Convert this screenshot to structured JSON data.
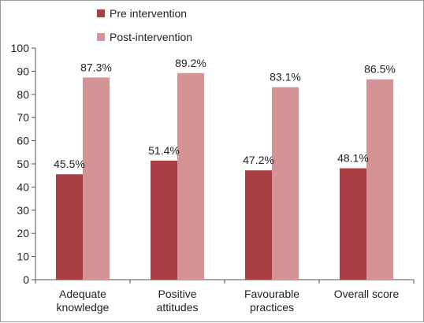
{
  "chart_data": {
    "type": "bar",
    "categories": [
      [
        "Adequate",
        "knowledge"
      ],
      [
        "Positive",
        "attitudes"
      ],
      [
        "Favourable",
        "practices"
      ],
      [
        "Overall score"
      ]
    ],
    "series": [
      {
        "name": "Pre intervention",
        "values": [
          45.5,
          51.4,
          47.2,
          48.1
        ],
        "labels": [
          "45.5%",
          "51.4%",
          "47.2%",
          "48.1%"
        ],
        "color": "#a83f44"
      },
      {
        "name": "Post-intervention",
        "values": [
          87.3,
          89.2,
          83.1,
          86.5
        ],
        "labels": [
          "87.3%",
          "89.2%",
          "83.1%",
          "86.5%"
        ],
        "color": "#d49496"
      }
    ],
    "ylim": [
      0,
      100
    ],
    "yticks": [
      0,
      10,
      20,
      30,
      40,
      50,
      60,
      70,
      80,
      90,
      100
    ],
    "grid": false,
    "legend_position": "top-left"
  }
}
